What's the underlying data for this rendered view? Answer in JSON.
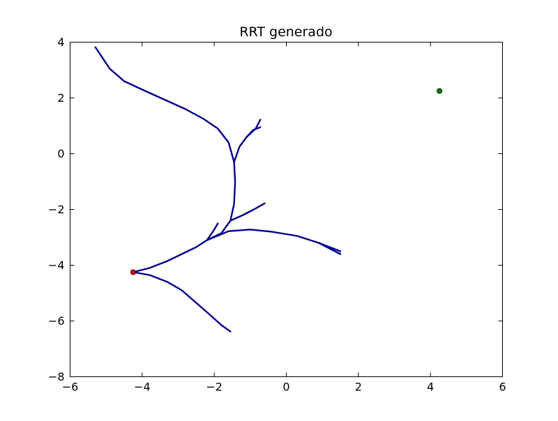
{
  "chart_data": {
    "type": "line",
    "title": "RRT generado",
    "xlabel": "",
    "ylabel": "",
    "xlim": [
      -6,
      6
    ],
    "ylim": [
      -8,
      4
    ],
    "xticks": [
      -6,
      -4,
      -2,
      0,
      2,
      4,
      6
    ],
    "yticks": [
      -8,
      -6,
      -4,
      -2,
      0,
      2,
      4
    ],
    "xtick_labels": [
      "−6",
      "−4",
      "−2",
      "0",
      "2",
      "4",
      "6"
    ],
    "ytick_labels": [
      "−8",
      "−6",
      "−4",
      "−2",
      "0",
      "2",
      "4"
    ],
    "grid": false,
    "tree_color": "#00008b",
    "branches": [
      {
        "points": [
          [
            -4.25,
            -4.25
          ],
          [
            -3.8,
            -4.1
          ],
          [
            -3.3,
            -3.85
          ],
          [
            -2.9,
            -3.6
          ],
          [
            -2.5,
            -3.35
          ],
          [
            -2.2,
            -3.1
          ],
          [
            -1.8,
            -2.85
          ],
          [
            -1.55,
            -2.4
          ],
          [
            -1.45,
            -1.8
          ],
          [
            -1.42,
            -1.0
          ],
          [
            -1.45,
            -0.3
          ],
          [
            -1.6,
            0.4
          ],
          [
            -1.9,
            0.9
          ],
          [
            -2.3,
            1.25
          ],
          [
            -2.8,
            1.6
          ],
          [
            -3.4,
            1.95
          ],
          [
            -4.0,
            2.3
          ],
          [
            -4.5,
            2.6
          ],
          [
            -4.9,
            3.05
          ],
          [
            -5.3,
            3.82
          ]
        ]
      },
      {
        "points": [
          [
            -1.45,
            -0.3
          ],
          [
            -1.3,
            0.25
          ],
          [
            -1.1,
            0.6
          ],
          [
            -0.85,
            0.9
          ],
          [
            -0.72,
            1.22
          ]
        ]
      },
      {
        "points": [
          [
            -1.1,
            0.6
          ],
          [
            -0.92,
            0.85
          ],
          [
            -0.72,
            0.95
          ]
        ]
      },
      {
        "points": [
          [
            -1.55,
            -2.4
          ],
          [
            -1.2,
            -2.2
          ],
          [
            -0.9,
            -2.0
          ],
          [
            -0.6,
            -1.78
          ]
        ]
      },
      {
        "points": [
          [
            -2.2,
            -3.1
          ],
          [
            -1.6,
            -2.78
          ],
          [
            -1.0,
            -2.72
          ],
          [
            -0.4,
            -2.8
          ],
          [
            0.3,
            -2.95
          ],
          [
            0.9,
            -3.2
          ],
          [
            1.5,
            -3.5
          ]
        ]
      },
      {
        "points": [
          [
            0.9,
            -3.2
          ],
          [
            1.5,
            -3.6
          ]
        ]
      },
      {
        "points": [
          [
            -2.2,
            -3.1
          ],
          [
            -2.0,
            -2.72
          ],
          [
            -1.9,
            -2.5
          ]
        ]
      },
      {
        "points": [
          [
            -4.25,
            -4.25
          ],
          [
            -3.8,
            -4.35
          ],
          [
            -3.3,
            -4.6
          ],
          [
            -2.9,
            -4.9
          ],
          [
            -2.5,
            -5.35
          ],
          [
            -2.1,
            -5.8
          ],
          [
            -1.8,
            -6.15
          ],
          [
            -1.55,
            -6.38
          ]
        ]
      }
    ],
    "markers": [
      {
        "x": -4.25,
        "y": -4.25,
        "color": "#d40000"
      },
      {
        "x": 4.25,
        "y": 2.25,
        "color": "#008000"
      }
    ]
  }
}
